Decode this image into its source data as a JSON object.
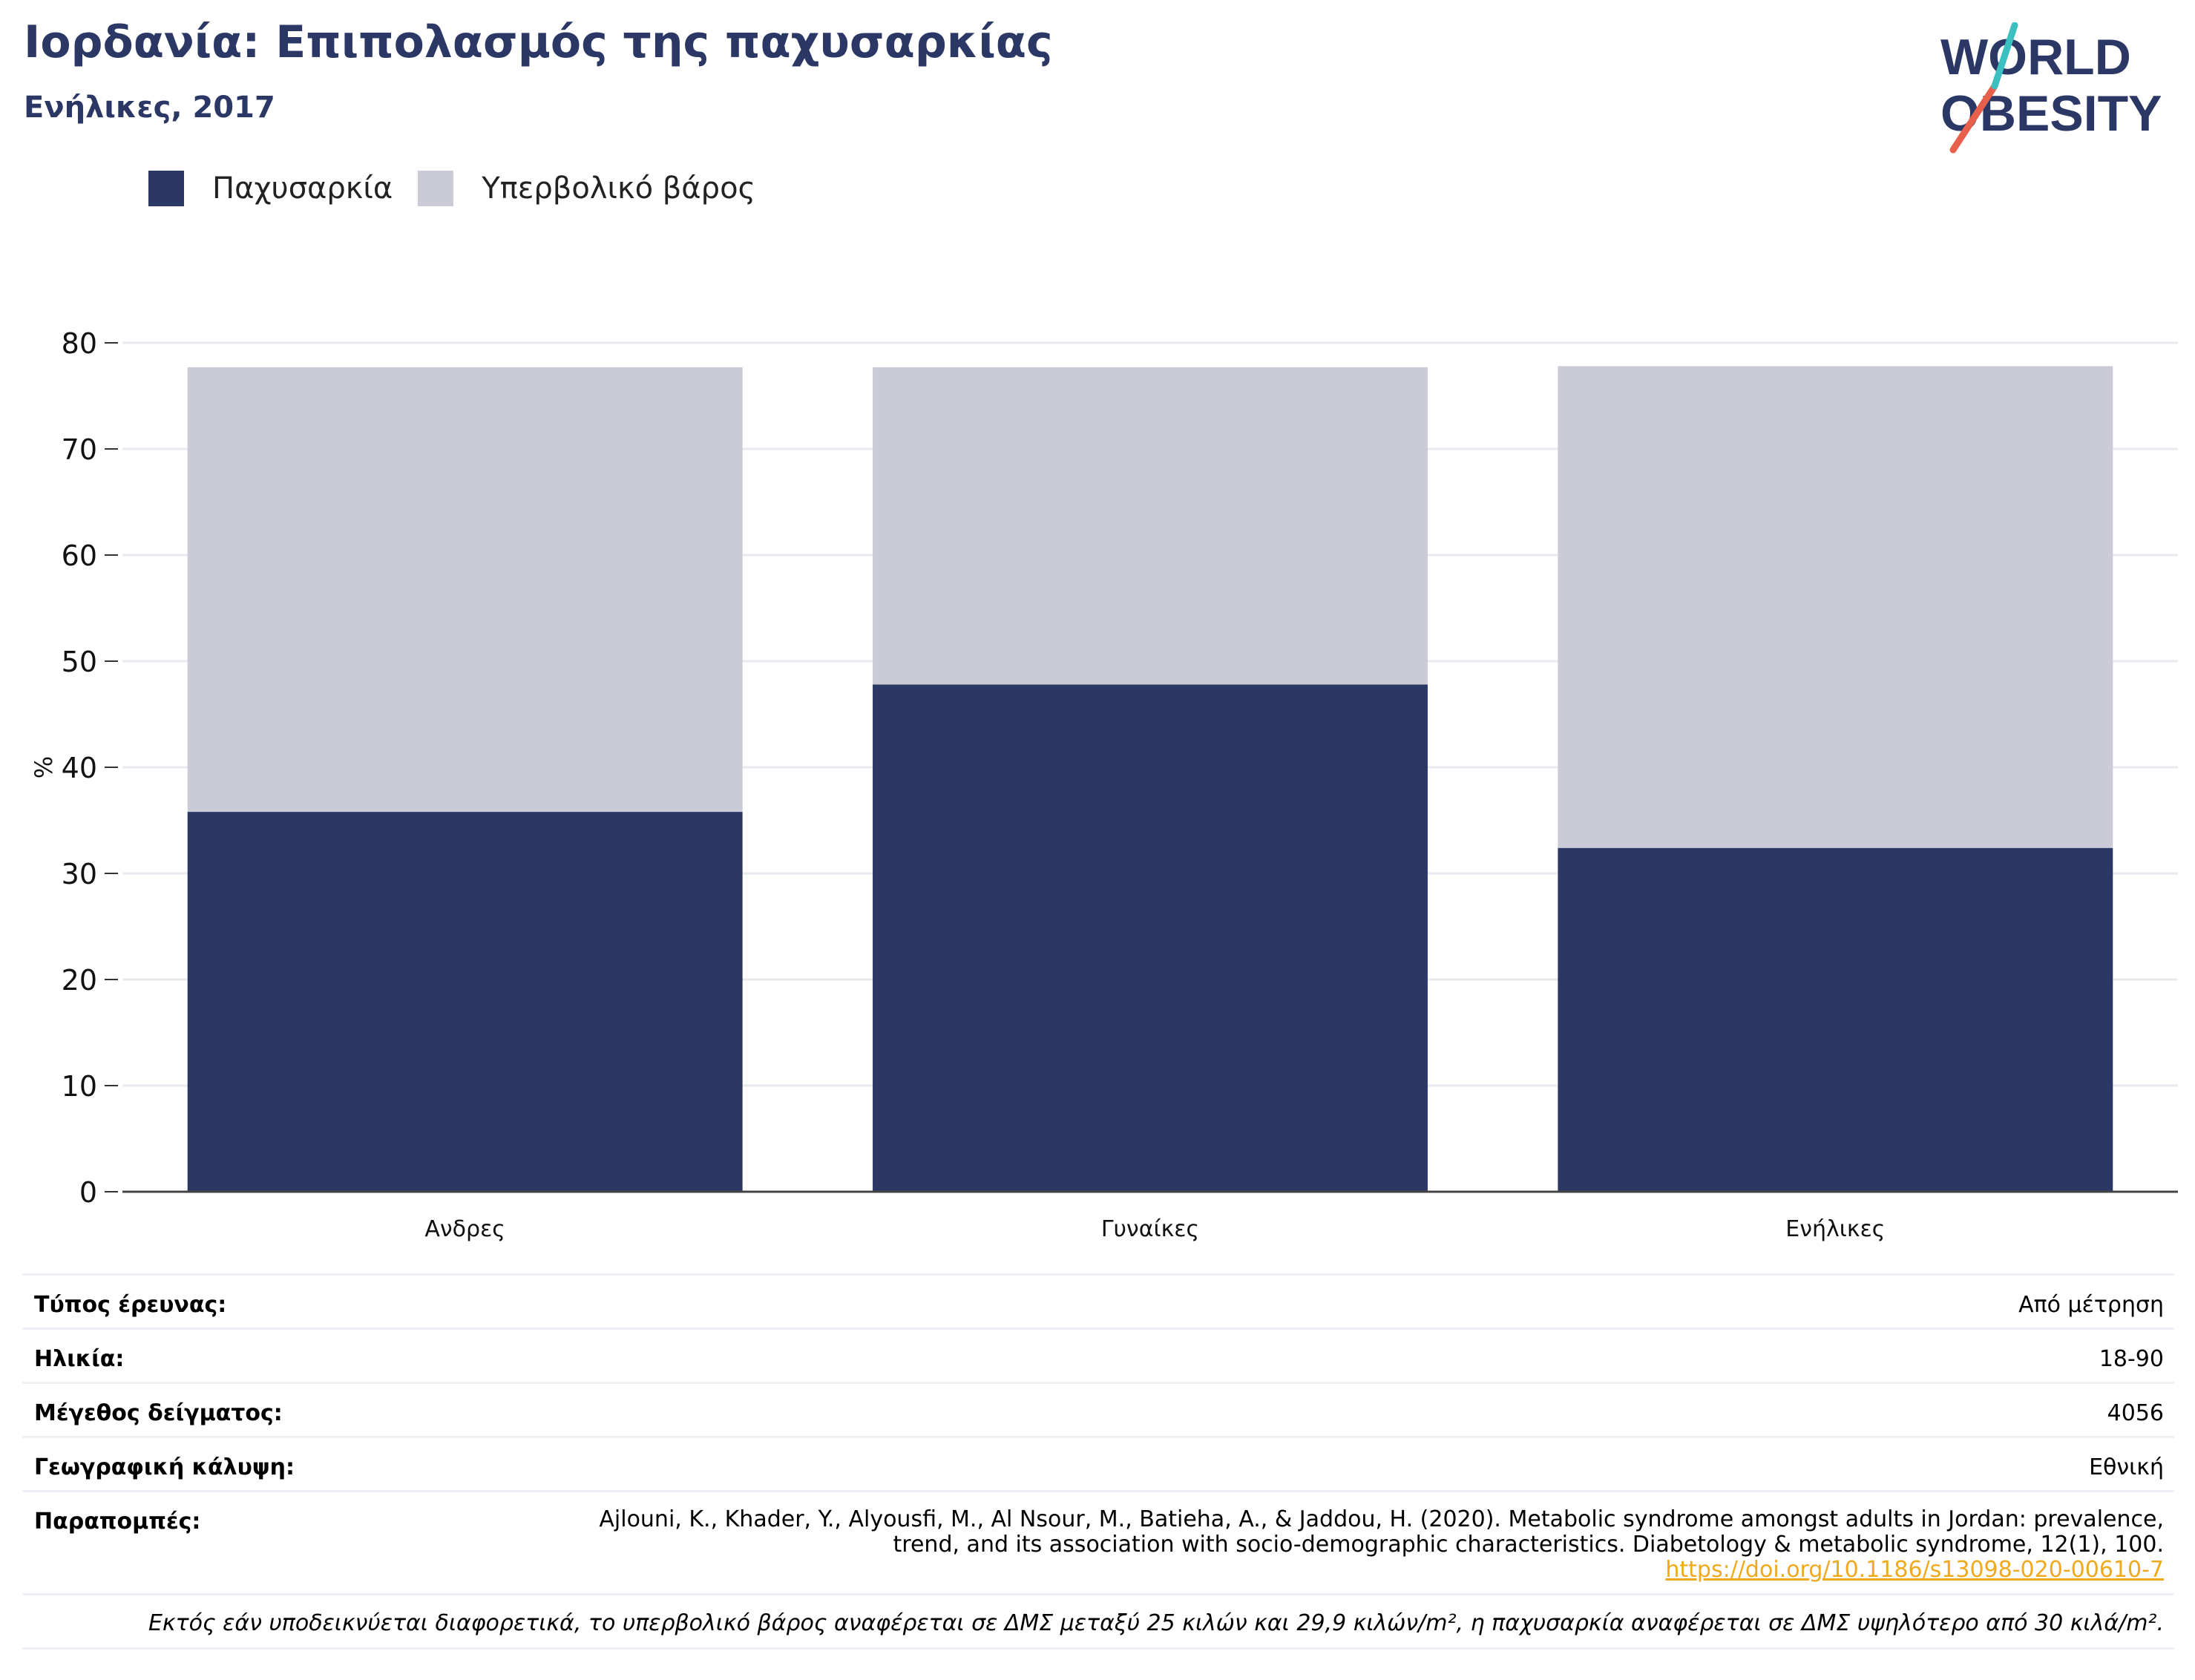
{
  "header": {
    "title": "Ιορδανία: Επιπολασμός της παχυσαρκίας",
    "subtitle": "Ενήλικες, 2017",
    "logo_text": [
      "WORLD",
      "OBESITY"
    ]
  },
  "legend": {
    "items": [
      {
        "label": "Παχυσαρκία",
        "color": "#2b3764"
      },
      {
        "label": "Υπερβολικό βάρος",
        "color": "#cacbd7"
      }
    ]
  },
  "chart_data": {
    "type": "bar",
    "stacked": true,
    "categories": [
      "Ανδρες",
      "Γυναίκες",
      "Ενήλικες"
    ],
    "series": [
      {
        "name": "Παχυσαρκία",
        "color": "#2b3764",
        "values": [
          35.8,
          47.8,
          32.4
        ]
      },
      {
        "name": "Υπερβολικό βάρος",
        "color": "#cacbd7",
        "values": [
          41.9,
          29.9,
          45.4
        ]
      }
    ],
    "ylabel": "%",
    "ylim": [
      0,
      80
    ],
    "yticks": [
      "0",
      "10",
      "20",
      "30",
      "40",
      "50",
      "60",
      "70",
      "80"
    ],
    "grid": true,
    "legend_position": "top-left"
  },
  "info": {
    "rows": [
      {
        "label": "Τύπος έρευνας:",
        "value": "Από μέτρηση"
      },
      {
        "label": "Ηλικία:",
        "value": "18-90"
      },
      {
        "label": "Μέγεθος δείγματος:",
        "value": "4056"
      },
      {
        "label": "Γεωγραφική κάλυψη:",
        "value": "Εθνική"
      }
    ],
    "refs_label": "Παραπομπές:",
    "refs_line1": "Ajlouni, K., Khader, Y., Alyousfi, M., Al Nsour, M., Batieha, A., & Jaddou, H. (2020). Metabolic syndrome amongst adults in Jordan: prevalence,",
    "refs_line2": "trend, and its association with socio-demographic characteristics. Diabetology & metabolic syndrome, 12(1), 100.",
    "refs_link": "https://doi.org/10.1186/s13098-020-00610-7",
    "note": "Εκτός εάν υποδεικνύεται διαφορετικά, το υπερβολικό βάρος αναφέρεται σε ΔΜΣ μεταξύ 25 κιλών και 29,9 κιλών/m², η παχυσαρκία αναφέρεται σε ΔΜΣ υψηλότερο από 30 κιλά/m²."
  }
}
